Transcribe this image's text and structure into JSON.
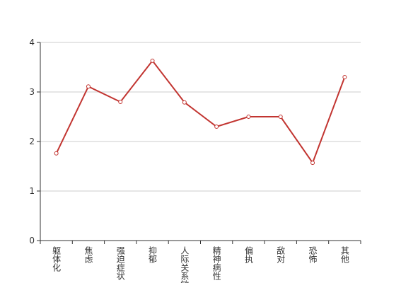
{
  "chart_data": {
    "type": "line",
    "categories": [
      "躯体化",
      "焦虑",
      "强迫症状",
      "抑郁",
      "人际关系敏感",
      "精神病性",
      "偏执",
      "敌对",
      "恐怖",
      "其他"
    ],
    "values": [
      1.76,
      3.11,
      2.8,
      3.63,
      2.79,
      2.3,
      2.5,
      2.5,
      1.57,
      3.3
    ],
    "color": "#c23531",
    "ylim": [
      0,
      4
    ],
    "yticks": [
      0,
      1,
      2,
      3,
      4
    ],
    "grid": true
  }
}
